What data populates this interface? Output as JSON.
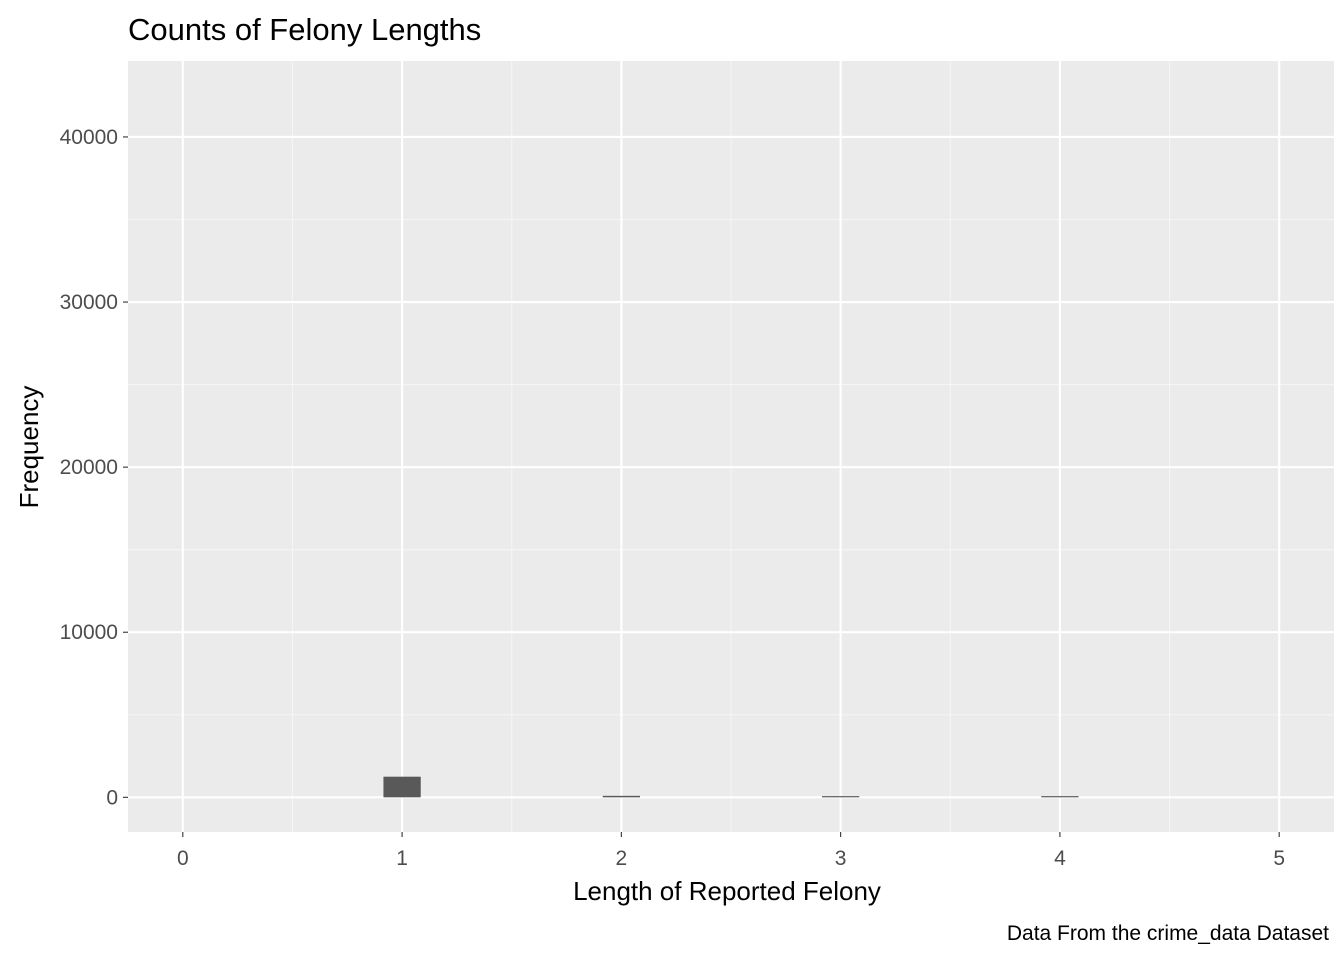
{
  "chart_data": {
    "type": "bar",
    "title": "Counts of Felony Lengths",
    "xlabel": "Length of Reported Felony",
    "ylabel": "Frequency",
    "caption": "Data From the crime_data Dataset",
    "x": [
      1,
      2,
      3,
      4
    ],
    "values": [
      1250,
      90,
      35,
      35
    ],
    "bar_width": 0.17,
    "xlim": [
      -0.25,
      5.25
    ],
    "ylim": [
      -2100,
      44600
    ],
    "x_ticks": [
      0,
      1,
      2,
      3,
      4,
      5
    ],
    "x_tick_labels": [
      "0",
      "1",
      "2",
      "3",
      "4",
      "5"
    ],
    "y_ticks": [
      0,
      10000,
      20000,
      30000,
      40000
    ],
    "y_tick_labels": [
      "0",
      "10000",
      "20000",
      "30000",
      "40000"
    ],
    "grid": true,
    "legend": "none",
    "colors": {
      "panel_background": "#ebebeb",
      "grid_major": "#ffffff",
      "grid_minor": "#f5f5f5",
      "bar_fill": "#595959",
      "tick_color": "#333333"
    }
  }
}
